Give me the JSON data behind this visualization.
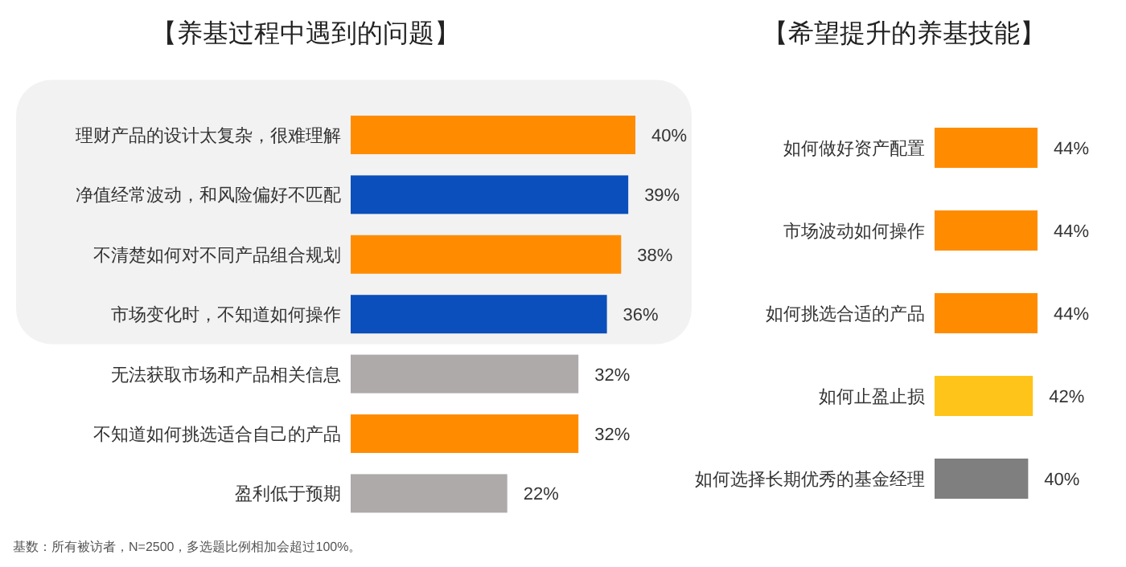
{
  "chart_data": [
    {
      "type": "bar",
      "orientation": "horizontal",
      "title": "【养基过程中遇到的问题】",
      "categories": [
        "理财产品的设计太复杂，很难理解",
        "净值经常波动，和风险偏好不匹配",
        "不清楚如何对不同产品组合规划",
        "市场变化时，不知道如何操作",
        "无法获取市场和产品相关信息",
        "不知道如何挑选适合自己的产品",
        "盈利低于预期"
      ],
      "values": [
        40,
        39,
        38,
        36,
        32,
        32,
        22
      ],
      "value_labels": [
        "40%",
        "39%",
        "38%",
        "36%",
        "32%",
        "32%",
        "22%"
      ],
      "colors": [
        "#ff8c00",
        "#0a4fbb",
        "#ff8c00",
        "#0a4fbb",
        "#aeaaaa",
        "#ff8c00",
        "#aeaaaa"
      ],
      "bands": [
        {
          "axis": "y",
          "from": "理财产品的设计太复杂，很难理解",
          "to": "市场变化时，不知道如何操作",
          "color": "#f2f2f2"
        }
      ],
      "annotations": [
        "基数：所有被访者，N=2500，多选题比例相加会超过100%。"
      ]
    },
    {
      "type": "bar",
      "orientation": "horizontal",
      "title": "【希望提升的养基技能】",
      "categories": [
        "如何做好资产配置",
        "市场波动如何操作",
        "如何挑选合适的产品",
        "如何止盈止损",
        "如何选择长期优秀的基金经理"
      ],
      "values": [
        44,
        44,
        44,
        42,
        40
      ],
      "value_labels": [
        "44%",
        "44%",
        "44%",
        "42%",
        "40%"
      ],
      "colors": [
        "#ff8c00",
        "#ff8c00",
        "#ff8c00",
        "#ffc41a",
        "#7f7f7f"
      ]
    }
  ]
}
